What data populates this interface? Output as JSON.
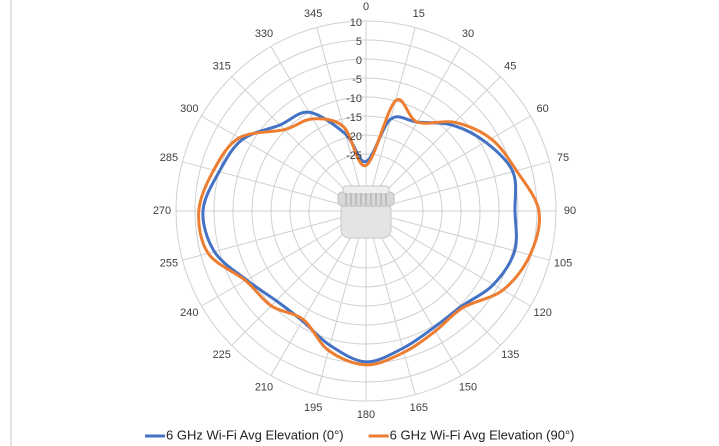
{
  "chart_data": {
    "type": "radar",
    "categories": [
      "0",
      "15",
      "30",
      "45",
      "60",
      "75",
      "90",
      "105",
      "120",
      "135",
      "150",
      "165",
      "180",
      "195",
      "210",
      "225",
      "240",
      "255",
      "270",
      "285",
      "300",
      "315",
      "330",
      "345"
    ],
    "series": [
      {
        "name": "6 GHz Wi-Fi Avg Elevation (0°)",
        "color": "#4472c4",
        "values": [
          -27,
          -15,
          -13,
          -8,
          -3.7,
          0,
          -0.8,
          0.5,
          -1.3,
          -4.5,
          -4.5,
          -2.6,
          -0.3,
          -3.4,
          -6.6,
          -6.6,
          -3.7,
          1.3,
          2.9,
          0,
          -2.4,
          -8,
          -10,
          -19
        ]
      },
      {
        "name": "6 GHz Wi-Fi Avg Elevation (90°)",
        "color": "#ed7d31",
        "values": [
          -28,
          -10,
          -13,
          -7,
          -2,
          1,
          5.5,
          4.7,
          1.6,
          -4,
          -3.5,
          -1.5,
          0.5,
          -2,
          -7,
          -4.7,
          -3.4,
          3,
          4,
          1.5,
          -1.5,
          -9.7,
          -12,
          -17
        ]
      }
    ],
    "ylim": [
      -40,
      10
    ],
    "yticks": [
      -25,
      -20,
      -15,
      -10,
      -5,
      0,
      5,
      10
    ],
    "grid": true,
    "legend": "bottom"
  }
}
